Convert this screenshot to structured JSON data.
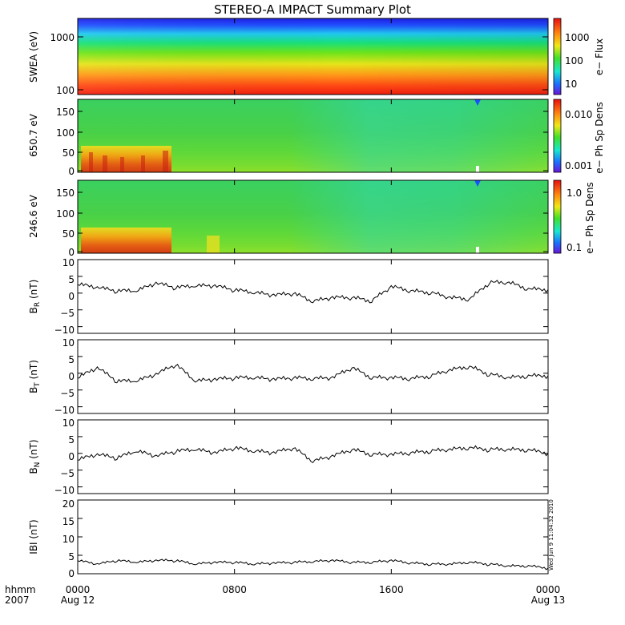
{
  "title": "STEREO-A IMPACT Summary Plot",
  "stamp": "Wed Jun  9 11:04:32 2010",
  "footer": {
    "time_label": "hhmm",
    "year_label": "2007"
  },
  "chart_data": [
    {
      "type": "heatmap",
      "id": "swea",
      "ylabel": "SWEA (eV)",
      "y_scale": "log",
      "y_ticks": [
        "1000",
        "100"
      ],
      "colorbar": {
        "label": "e− Flux",
        "ticks": [
          "1000",
          "100",
          "10"
        ]
      }
    },
    {
      "type": "heatmap",
      "id": "pad650",
      "ylabel": "650.7 eV",
      "ylim": [
        0,
        180
      ],
      "y_ticks": [
        "150",
        "100",
        "50",
        "0"
      ],
      "colorbar": {
        "label": "e− Ph Sp Dens",
        "ticks": [
          "0.010",
          "0.001"
        ]
      }
    },
    {
      "type": "heatmap",
      "id": "pad246",
      "ylabel": "246.6 eV",
      "ylim": [
        0,
        180
      ],
      "y_ticks": [
        "150",
        "100",
        "50",
        "0"
      ],
      "colorbar": {
        "label": "e− Ph Sp Dens",
        "ticks": [
          "1.0",
          "0.1"
        ]
      }
    },
    {
      "type": "line",
      "id": "br",
      "ylabel": "BR (nT)",
      "ylim": [
        -12,
        10
      ],
      "y_ticks": [
        "10",
        "5",
        "0",
        "−5",
        "−10"
      ],
      "x": [
        0,
        1,
        2,
        3,
        4,
        5,
        6,
        7,
        8,
        9,
        10,
        11,
        12,
        13,
        14,
        15,
        16,
        17,
        18,
        19,
        20,
        21,
        22,
        23,
        24
      ],
      "values": [
        2.5,
        1.5,
        0.5,
        0.5,
        2.8,
        1.5,
        2.0,
        2.0,
        0.8,
        0.0,
        -0.8,
        -0.2,
        -2.6,
        -1.5,
        -1.5,
        -2.5,
        1.8,
        0.5,
        0.0,
        -1.5,
        -2.0,
        3.0,
        3.0,
        1.0,
        1.0
      ]
    },
    {
      "type": "line",
      "id": "bt",
      "ylabel": "BT (nT)",
      "ylim": [
        -12,
        10
      ],
      "y_ticks": [
        "10",
        "5",
        "0",
        "−5",
        "−10"
      ],
      "x": [
        0,
        1,
        2,
        3,
        4,
        5,
        6,
        7,
        8,
        9,
        10,
        11,
        12,
        13,
        14,
        15,
        16,
        17,
        18,
        19,
        20,
        21,
        22,
        23,
        24
      ],
      "values": [
        -1.5,
        1.5,
        -2.5,
        -2.5,
        -0.5,
        2.5,
        -2.5,
        -2.0,
        -1.5,
        -1.5,
        -2.0,
        -1.5,
        -1.8,
        -1.5,
        1.5,
        -1.5,
        -1.5,
        -1.8,
        -1.0,
        0.8,
        1.8,
        -0.5,
        -1.5,
        -1.0,
        -0.8
      ]
    },
    {
      "type": "line",
      "id": "bn",
      "ylabel": "BN (nT)",
      "ylim": [
        -12,
        10
      ],
      "y_ticks": [
        "10",
        "5",
        "0",
        "−5",
        "−10"
      ],
      "x": [
        0,
        1,
        2,
        3,
        4,
        5,
        6,
        7,
        8,
        9,
        10,
        11,
        12,
        13,
        14,
        15,
        16,
        17,
        18,
        19,
        20,
        21,
        22,
        23,
        24
      ],
      "values": [
        -2.0,
        -0.5,
        -1.5,
        0.5,
        -1.0,
        0.5,
        1.0,
        0.0,
        1.5,
        0.5,
        0.0,
        1.5,
        -2.5,
        -1.0,
        1.0,
        -0.5,
        -0.5,
        0.0,
        0.5,
        1.0,
        1.5,
        1.0,
        1.0,
        0.8,
        0.0
      ]
    },
    {
      "type": "line",
      "id": "bmag",
      "ylabel": "IBI (nT)",
      "ylim": [
        0,
        20
      ],
      "y_ticks": [
        "20",
        "15",
        "10",
        "5",
        "0"
      ],
      "x": [
        0,
        1,
        2,
        3,
        4,
        5,
        6,
        7,
        8,
        9,
        10,
        11,
        12,
        13,
        14,
        15,
        16,
        17,
        18,
        19,
        20,
        21,
        22,
        23,
        24
      ],
      "values": [
        3.5,
        2.5,
        3.5,
        3.0,
        3.5,
        3.5,
        2.5,
        3.0,
        3.0,
        2.5,
        2.8,
        3.0,
        3.2,
        3.5,
        3.0,
        3.0,
        3.5,
        2.8,
        2.5,
        2.5,
        3.0,
        2.5,
        2.0,
        2.0,
        1.5
      ]
    }
  ],
  "x_axis": {
    "ticks": [
      {
        "hours": 0,
        "time": "0000",
        "date": "Aug 12"
      },
      {
        "hours": 8,
        "time": "0800",
        "date": ""
      },
      {
        "hours": 16,
        "time": "1600",
        "date": ""
      },
      {
        "hours": 24,
        "time": "0000",
        "date": "Aug 13"
      }
    ]
  }
}
